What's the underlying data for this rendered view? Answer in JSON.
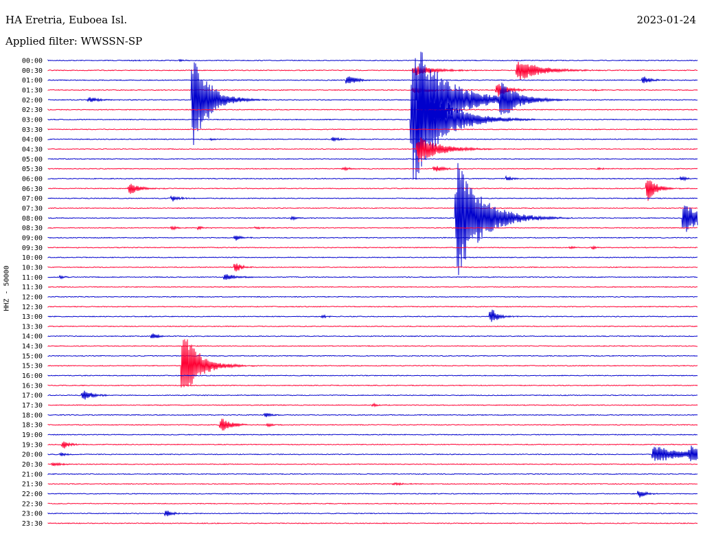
{
  "header": {
    "station": "HA Eretria, Euboea Isl.",
    "date": "2023-01-24",
    "filter": "Applied filter: WWSSN-SP"
  },
  "chart_data": {
    "type": "line",
    "ylabel": "HHZ - 50000",
    "colors": [
      "#0000cc",
      "#ff0033"
    ],
    "tick_labels": [
      "00:00",
      "00:30",
      "01:00",
      "01:30",
      "02:00",
      "02:30",
      "03:00",
      "03:30",
      "04:00",
      "04:30",
      "05:00",
      "05:30",
      "06:00",
      "06:30",
      "07:00",
      "07:30",
      "08:00",
      "08:30",
      "09:00",
      "09:30",
      "10:00",
      "10:30",
      "11:00",
      "11:30",
      "12:00",
      "12:30",
      "13:00",
      "13:30",
      "14:00",
      "14:30",
      "15:00",
      "15:30",
      "16:00",
      "16:30",
      "17:00",
      "17:30",
      "18:00",
      "18:30",
      "19:00",
      "19:30",
      "20:00",
      "20:30",
      "21:00",
      "21:30",
      "22:00",
      "22:30",
      "23:00",
      "23:30"
    ],
    "x_unit": "minutes into 30-min trace",
    "xlim": [
      0,
      30
    ],
    "events": [
      {
        "trace": 0,
        "t": 4.2,
        "amp": 1,
        "dur": 0.5
      },
      {
        "trace": 0,
        "t": 6.5,
        "amp": 1.5,
        "dur": 0.4
      },
      {
        "trace": 1,
        "t": 18.0,
        "amp": 9,
        "dur": 1.8
      },
      {
        "trace": 1,
        "t": 23.1,
        "amp": 18,
        "dur": 2
      },
      {
        "trace": 2,
        "t": 14.7,
        "amp": 9,
        "dur": 0.8
      },
      {
        "trace": 2,
        "t": 29.3,
        "amp": 7,
        "dur": 0.7
      },
      {
        "trace": 3,
        "t": 18.0,
        "amp": 7,
        "dur": 1.2
      },
      {
        "trace": 3,
        "t": 22.1,
        "amp": 12,
        "dur": 1
      },
      {
        "trace": 3,
        "t": 26.9,
        "amp": 2,
        "dur": 0.4
      },
      {
        "trace": 4,
        "t": 7.1,
        "amp": 75,
        "dur": 1.5
      },
      {
        "trace": 4,
        "t": 2.0,
        "amp": 5,
        "dur": 0.8
      },
      {
        "trace": 4,
        "t": 18.2,
        "amp": 82,
        "dur": 3
      },
      {
        "trace": 4,
        "t": 22.3,
        "amp": 32,
        "dur": 1.3
      },
      {
        "trace": 4,
        "t": 7.8,
        "amp": 6,
        "dur": 0.6
      },
      {
        "trace": 6,
        "t": 17.9,
        "amp": 105,
        "dur": 2.5
      },
      {
        "trace": 8,
        "t": 14.0,
        "amp": 5,
        "dur": 0.6
      },
      {
        "trace": 8,
        "t": 8.0,
        "amp": 2,
        "dur": 0.6
      },
      {
        "trace": 9,
        "t": 18.2,
        "amp": 22,
        "dur": 2
      },
      {
        "trace": 11,
        "t": 14.5,
        "amp": 3,
        "dur": 0.6
      },
      {
        "trace": 11,
        "t": 19.0,
        "amp": 6,
        "dur": 0.8
      },
      {
        "trace": 11,
        "t": 27.1,
        "amp": 2,
        "dur": 0.5
      },
      {
        "trace": 12,
        "t": 22.6,
        "amp": 5,
        "dur": 0.5
      },
      {
        "trace": 12,
        "t": 31.2,
        "amp": 5,
        "dur": 0.4
      },
      {
        "trace": 13,
        "t": 4.0,
        "amp": 10,
        "dur": 0.9
      },
      {
        "trace": 13,
        "t": 29.5,
        "amp": 22,
        "dur": 0.8
      },
      {
        "trace": 14,
        "t": 6.1,
        "amp": 6,
        "dur": 0.6
      },
      {
        "trace": 16,
        "t": 20.1,
        "amp": 95,
        "dur": 2.3
      },
      {
        "trace": 16,
        "t": 12.0,
        "amp": 4,
        "dur": 0.5
      },
      {
        "trace": 16,
        "t": 31.3,
        "amp": 28,
        "dur": 1.5
      },
      {
        "trace": 17,
        "t": 6.1,
        "amp": 4,
        "dur": 0.4
      },
      {
        "trace": 17,
        "t": 7.4,
        "amp": 4,
        "dur": 0.4
      },
      {
        "trace": 17,
        "t": 10.2,
        "amp": 3,
        "dur": 0.4
      },
      {
        "trace": 18,
        "t": 9.2,
        "amp": 5,
        "dur": 0.6
      },
      {
        "trace": 19,
        "t": 25.7,
        "amp": 3,
        "dur": 0.5
      },
      {
        "trace": 19,
        "t": 26.8,
        "amp": 3,
        "dur": 0.4
      },
      {
        "trace": 21,
        "t": 9.2,
        "amp": 9,
        "dur": 0.6
      },
      {
        "trace": 22,
        "t": 0.6,
        "amp": 3,
        "dur": 0.4
      },
      {
        "trace": 22,
        "t": 8.7,
        "amp": 8,
        "dur": 0.8
      },
      {
        "trace": 26,
        "t": 13.5,
        "amp": 3,
        "dur": 0.4
      },
      {
        "trace": 26,
        "t": 21.8,
        "amp": 15,
        "dur": 0.6
      },
      {
        "trace": 28,
        "t": 5.1,
        "amp": 6,
        "dur": 0.6
      },
      {
        "trace": 31,
        "t": 6.6,
        "amp": 58,
        "dur": 1.5
      },
      {
        "trace": 34,
        "t": 1.7,
        "amp": 9,
        "dur": 0.9
      },
      {
        "trace": 35,
        "t": 16.0,
        "amp": 3,
        "dur": 0.5
      },
      {
        "trace": 36,
        "t": 10.7,
        "amp": 5,
        "dur": 0.5
      },
      {
        "trace": 37,
        "t": 8.5,
        "amp": 12,
        "dur": 0.9
      },
      {
        "trace": 37,
        "t": 10.8,
        "amp": 3,
        "dur": 0.5
      },
      {
        "trace": 39,
        "t": 0.7,
        "amp": 8,
        "dur": 0.6
      },
      {
        "trace": 40,
        "t": 0.6,
        "amp": 3,
        "dur": 0.5
      },
      {
        "trace": 40,
        "t": 29.8,
        "amp": 14,
        "dur": 2.6
      },
      {
        "trace": 40,
        "t": 31.6,
        "amp": 12,
        "dur": 1.4
      },
      {
        "trace": 41,
        "t": 0.2,
        "amp": 3,
        "dur": 0.8
      },
      {
        "trace": 43,
        "t": 17.0,
        "amp": 2,
        "dur": 1
      },
      {
        "trace": 44,
        "t": 29.1,
        "amp": 7,
        "dur": 0.6
      },
      {
        "trace": 46,
        "t": 5.8,
        "amp": 6,
        "dur": 0.6
      }
    ]
  }
}
